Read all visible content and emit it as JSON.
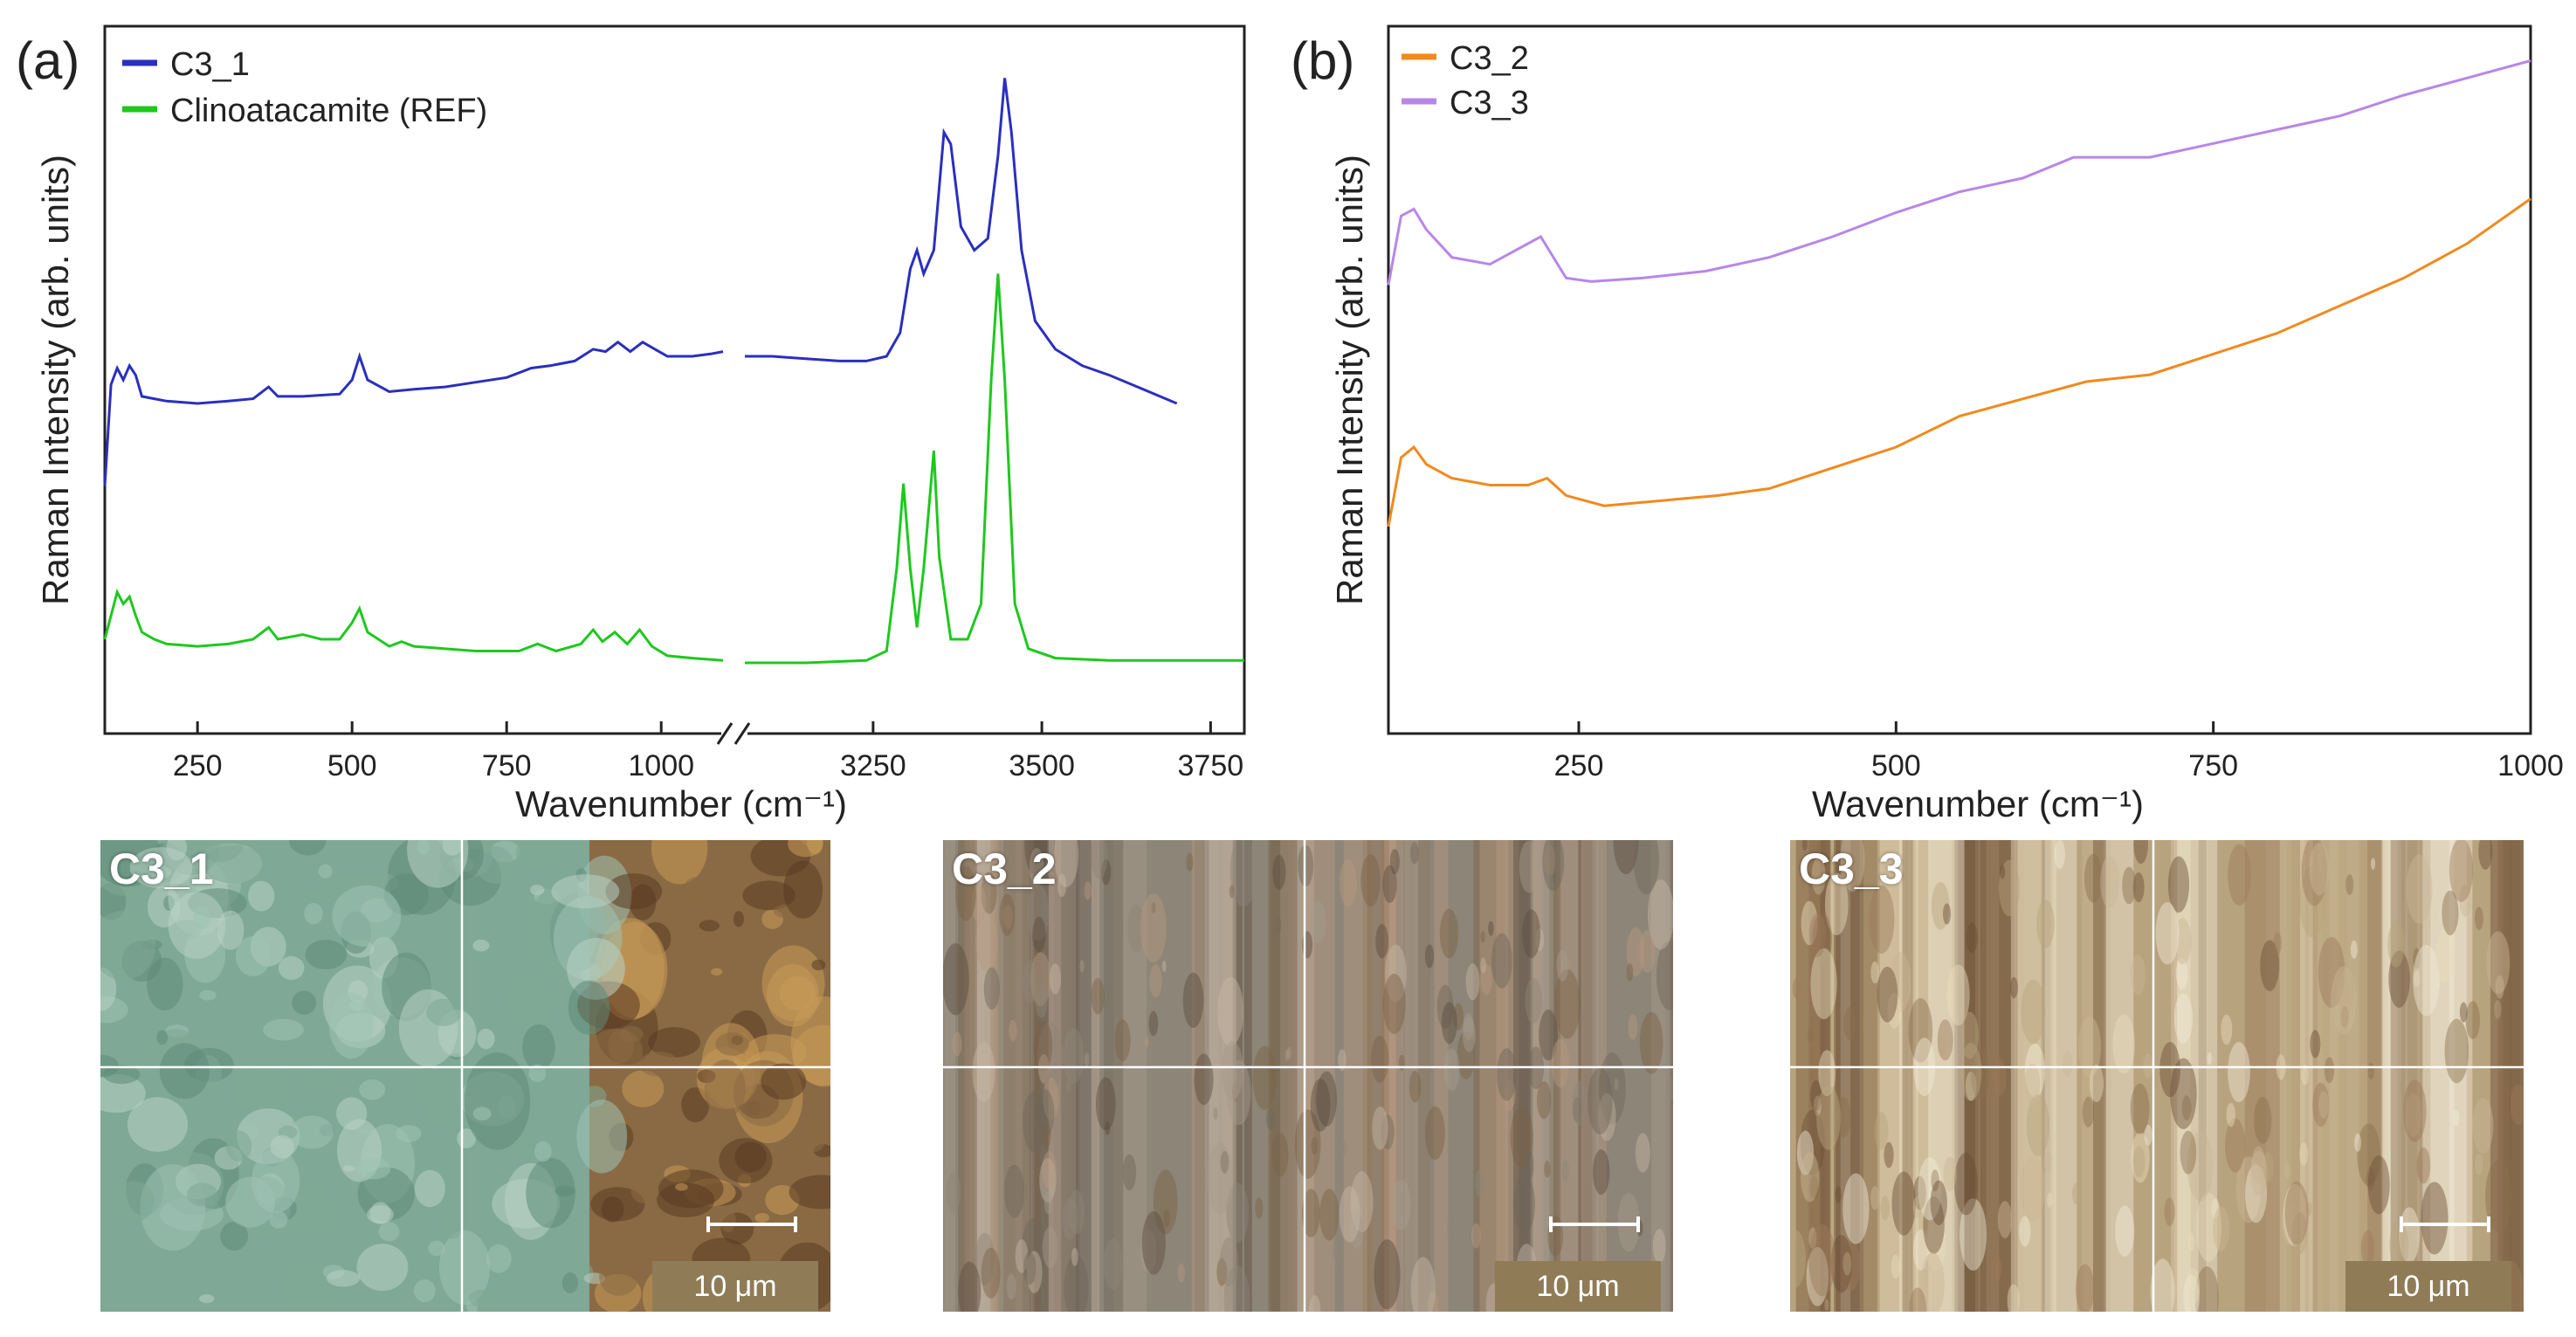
{
  "chart_data": [
    {
      "panel_label": "(a)",
      "type": "line",
      "xlabel": "Wavenumber (cm⁻¹)",
      "ylabel": "Raman Intensity (arb. units)",
      "x_break": true,
      "x_segments": [
        {
          "range": [
            100,
            1100
          ],
          "ticks": [
            250,
            500,
            750,
            1000
          ]
        },
        {
          "range": [
            3060,
            3800
          ],
          "ticks": [
            3250,
            3500,
            3750
          ]
        }
      ],
      "y_ticks": false,
      "legend_position": "top-left",
      "series": [
        {
          "name": "C3_1",
          "color": "#2a2fbf",
          "segments": [
            [
              [
                100,
                0.05
              ],
              [
                110,
                0.48
              ],
              [
                120,
                0.55
              ],
              [
                130,
                0.5
              ],
              [
                140,
                0.56
              ],
              [
                150,
                0.52
              ],
              [
                160,
                0.43
              ],
              [
                180,
                0.42
              ],
              [
                200,
                0.41
              ],
              [
                250,
                0.4
              ],
              [
                300,
                0.41
              ],
              [
                340,
                0.42
              ],
              [
                365,
                0.47
              ],
              [
                380,
                0.43
              ],
              [
                420,
                0.43
              ],
              [
                480,
                0.44
              ],
              [
                500,
                0.5
              ],
              [
                512,
                0.6
              ],
              [
                525,
                0.5
              ],
              [
                560,
                0.45
              ],
              [
                600,
                0.46
              ],
              [
                650,
                0.47
              ],
              [
                700,
                0.49
              ],
              [
                750,
                0.51
              ],
              [
                790,
                0.55
              ],
              [
                820,
                0.56
              ],
              [
                860,
                0.58
              ],
              [
                890,
                0.63
              ],
              [
                910,
                0.62
              ],
              [
                930,
                0.66
              ],
              [
                950,
                0.62
              ],
              [
                970,
                0.66
              ],
              [
                990,
                0.63
              ],
              [
                1010,
                0.6
              ],
              [
                1050,
                0.6
              ],
              [
                1080,
                0.61
              ],
              [
                1100,
                0.62
              ]
            ],
            [
              [
                3060,
                0.6
              ],
              [
                3100,
                0.6
              ],
              [
                3150,
                0.59
              ],
              [
                3200,
                0.58
              ],
              [
                3240,
                0.58
              ],
              [
                3270,
                0.6
              ],
              [
                3290,
                0.7
              ],
              [
                3305,
                0.97
              ],
              [
                3315,
                1.05
              ],
              [
                3325,
                0.95
              ],
              [
                3340,
                1.05
              ],
              [
                3355,
                1.55
              ],
              [
                3365,
                1.5
              ],
              [
                3380,
                1.15
              ],
              [
                3400,
                1.05
              ],
              [
                3420,
                1.1
              ],
              [
                3435,
                1.45
              ],
              [
                3445,
                1.78
              ],
              [
                3455,
                1.55
              ],
              [
                3470,
                1.05
              ],
              [
                3490,
                0.75
              ],
              [
                3520,
                0.63
              ],
              [
                3560,
                0.56
              ],
              [
                3600,
                0.52
              ],
              [
                3650,
                0.46
              ],
              [
                3700,
                0.4
              ]
            ]
          ]
        },
        {
          "name": "Clinoatacamite (REF)",
          "color": "#1ec81e",
          "segments": [
            [
              [
                100,
                -0.6
              ],
              [
                110,
                -0.5
              ],
              [
                120,
                -0.4
              ],
              [
                130,
                -0.45
              ],
              [
                140,
                -0.42
              ],
              [
                150,
                -0.5
              ],
              [
                160,
                -0.57
              ],
              [
                180,
                -0.6
              ],
              [
                200,
                -0.62
              ],
              [
                250,
                -0.63
              ],
              [
                300,
                -0.62
              ],
              [
                340,
                -0.6
              ],
              [
                365,
                -0.55
              ],
              [
                380,
                -0.6
              ],
              [
                420,
                -0.58
              ],
              [
                450,
                -0.6
              ],
              [
                480,
                -0.6
              ],
              [
                500,
                -0.53
              ],
              [
                512,
                -0.47
              ],
              [
                525,
                -0.57
              ],
              [
                560,
                -0.63
              ],
              [
                580,
                -0.61
              ],
              [
                600,
                -0.63
              ],
              [
                700,
                -0.65
              ],
              [
                770,
                -0.65
              ],
              [
                800,
                -0.62
              ],
              [
                830,
                -0.65
              ],
              [
                870,
                -0.62
              ],
              [
                890,
                -0.56
              ],
              [
                905,
                -0.61
              ],
              [
                925,
                -0.57
              ],
              [
                945,
                -0.62
              ],
              [
                965,
                -0.56
              ],
              [
                985,
                -0.63
              ],
              [
                1010,
                -0.67
              ],
              [
                1050,
                -0.68
              ],
              [
                1100,
                -0.69
              ]
            ],
            [
              [
                3060,
                -0.7
              ],
              [
                3150,
                -0.7
              ],
              [
                3240,
                -0.69
              ],
              [
                3270,
                -0.65
              ],
              [
                3285,
                -0.3
              ],
              [
                3295,
                0.06
              ],
              [
                3305,
                -0.3
              ],
              [
                3315,
                -0.55
              ],
              [
                3325,
                -0.3
              ],
              [
                3340,
                0.2
              ],
              [
                3348,
                -0.25
              ],
              [
                3365,
                -0.6
              ],
              [
                3390,
                -0.6
              ],
              [
                3410,
                -0.45
              ],
              [
                3425,
                0.5
              ],
              [
                3435,
                0.95
              ],
              [
                3445,
                0.5
              ],
              [
                3460,
                -0.45
              ],
              [
                3480,
                -0.64
              ],
              [
                3520,
                -0.68
              ],
              [
                3600,
                -0.69
              ],
              [
                3700,
                -0.69
              ],
              [
                3800,
                -0.69
              ]
            ]
          ]
        }
      ]
    },
    {
      "panel_label": "(b)",
      "type": "line",
      "xlabel": "Wavenumber (cm⁻¹)",
      "ylabel": "Raman Intensity (arb. units)",
      "xlim": [
        100,
        1000
      ],
      "x_ticks": [
        250,
        500,
        750,
        1000
      ],
      "y_ticks": false,
      "legend_position": "top-left",
      "series": [
        {
          "name": "C3_2",
          "color": "#f08a1e",
          "points": [
            [
              100,
              0.3
            ],
            [
              110,
              0.5
            ],
            [
              120,
              0.53
            ],
            [
              130,
              0.48
            ],
            [
              150,
              0.44
            ],
            [
              180,
              0.42
            ],
            [
              210,
              0.42
            ],
            [
              225,
              0.44
            ],
            [
              240,
              0.39
            ],
            [
              270,
              0.36
            ],
            [
              300,
              0.37
            ],
            [
              330,
              0.38
            ],
            [
              360,
              0.39
            ],
            [
              400,
              0.41
            ],
            [
              450,
              0.47
            ],
            [
              500,
              0.53
            ],
            [
              550,
              0.62
            ],
            [
              600,
              0.67
            ],
            [
              650,
              0.72
            ],
            [
              700,
              0.74
            ],
            [
              750,
              0.8
            ],
            [
              800,
              0.86
            ],
            [
              850,
              0.94
            ],
            [
              900,
              1.02
            ],
            [
              950,
              1.12
            ],
            [
              1000,
              1.25
            ]
          ]
        },
        {
          "name": "C3_3",
          "color": "#b886e8",
          "points": [
            [
              100,
              1.0
            ],
            [
              110,
              1.2
            ],
            [
              120,
              1.22
            ],
            [
              130,
              1.16
            ],
            [
              150,
              1.08
            ],
            [
              180,
              1.06
            ],
            [
              200,
              1.1
            ],
            [
              220,
              1.14
            ],
            [
              240,
              1.02
            ],
            [
              260,
              1.01
            ],
            [
              300,
              1.02
            ],
            [
              350,
              1.04
            ],
            [
              400,
              1.08
            ],
            [
              450,
              1.14
            ],
            [
              500,
              1.21
            ],
            [
              550,
              1.27
            ],
            [
              600,
              1.31
            ],
            [
              640,
              1.37
            ],
            [
              700,
              1.37
            ],
            [
              750,
              1.41
            ],
            [
              800,
              1.45
            ],
            [
              850,
              1.49
            ],
            [
              900,
              1.55
            ],
            [
              950,
              1.6
            ],
            [
              1000,
              1.65
            ]
          ]
        }
      ]
    }
  ],
  "micrographs": [
    {
      "label": "C3_1",
      "scale": "10 μm",
      "palette": [
        "#7fa896",
        "#9fc2b4",
        "#5e8a78",
        "#b8d2c4",
        "#8a6a44",
        "#c89a58",
        "#5a3a22"
      ]
    },
    {
      "label": "C3_2",
      "scale": "10 μm",
      "palette": [
        "#8d8577",
        "#a69b8b",
        "#6e6558",
        "#b59a80",
        "#5a4c3e",
        "#c8b9a6",
        "#7b6247"
      ]
    },
    {
      "label": "C3_3",
      "scale": "10 μm",
      "palette": [
        "#b8a37f",
        "#e9dcbc",
        "#8a6e4e",
        "#f2ebd6",
        "#6b4e36",
        "#c9b694",
        "#9b7a5c"
      ]
    }
  ]
}
